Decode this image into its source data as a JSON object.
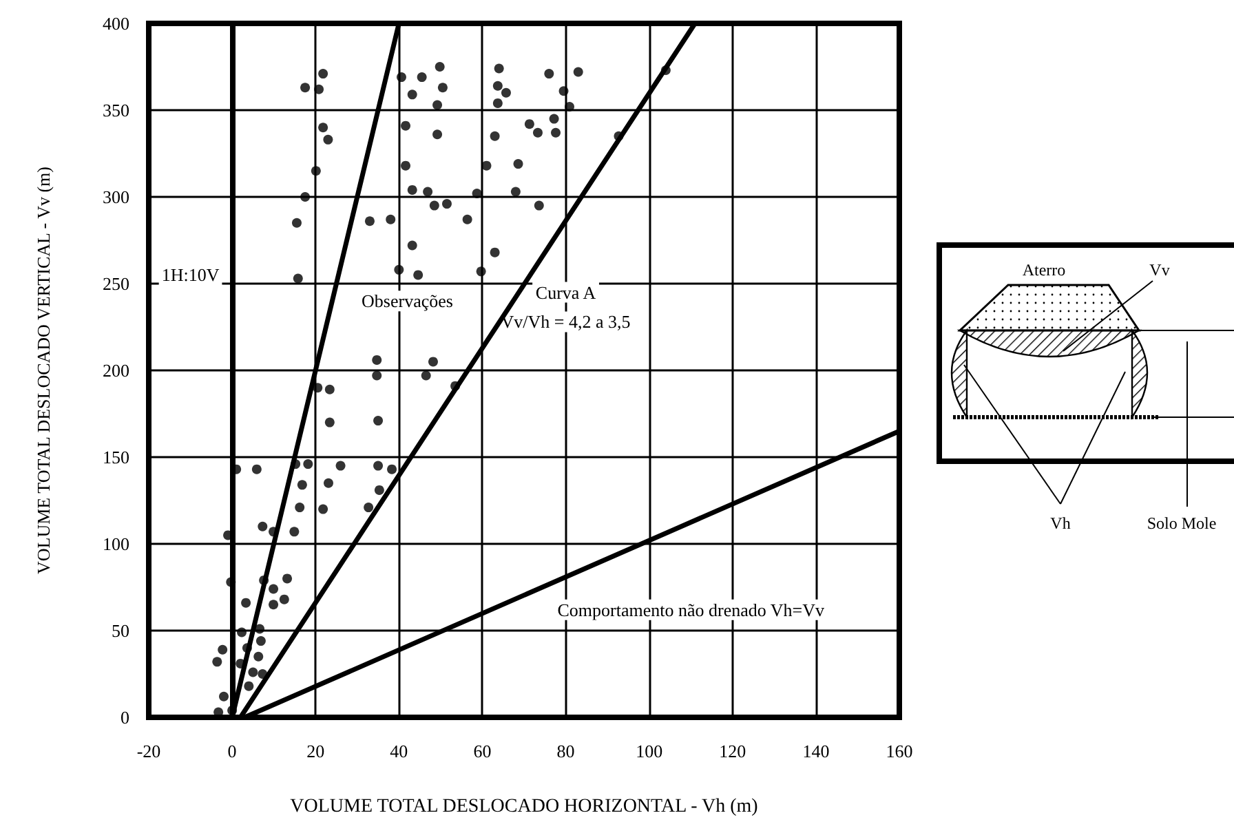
{
  "chart_data": {
    "type": "scatter",
    "xlabel": "VOLUME TOTAL DESLOCADO HORIZONTAL - Vh (m)",
    "ylabel": "VOLUME TOTAL DESLOCADO VERTICAL - Vv (m)",
    "xlim": [
      -20,
      160
    ],
    "xticks": [
      -20,
      0,
      20,
      40,
      60,
      80,
      100,
      120,
      140,
      160
    ],
    "ylim": [
      0,
      400
    ],
    "yticks": [
      0,
      50,
      100,
      150,
      200,
      250,
      300,
      350,
      400
    ],
    "grid": true,
    "series": [
      {
        "color": "#000000",
        "marker": "circle",
        "x": [
          21.8,
          17.5,
          20.8,
          40.6,
          45.5,
          49.8,
          50.5,
          43.2,
          49.2,
          64,
          63.7,
          65.7,
          63.7,
          76,
          21.8,
          23,
          41.6,
          49.2,
          63,
          71.3,
          73.3,
          83,
          79.5,
          80.9,
          77.2,
          77.6,
          104,
          92.7,
          73.6,
          20.1,
          17.5,
          15.5,
          15.8,
          41.6,
          43.2,
          46.9,
          48.5,
          51.5,
          58.7,
          56.4,
          61,
          68.6,
          68,
          63,
          59.7,
          33,
          38,
          43.2,
          40,
          44.6,
          34.7,
          48.2,
          34.7,
          46.5,
          53.5,
          20.5,
          23.4,
          23.4,
          35,
          1,
          5.9,
          15.2,
          18.2,
          26,
          35,
          38.3,
          16.8,
          23.1,
          35.3,
          16.2,
          21.8,
          32.7,
          -1,
          7.3,
          9.9,
          14.9,
          -0.3,
          7.6,
          9.9,
          13.2,
          12.5,
          9.9,
          3.3,
          2.3,
          6.6,
          6.9,
          -2.3,
          -3.6,
          3.6,
          6.3,
          2,
          5,
          7.3,
          4,
          -2,
          -3.3,
          0
        ],
        "values": [
          371,
          363,
          362,
          369,
          369,
          375,
          363,
          359,
          353,
          374,
          364,
          360,
          354,
          371,
          340,
          333,
          341,
          336,
          335,
          342,
          337,
          372,
          361,
          352,
          345,
          337,
          373,
          335,
          295,
          315,
          300,
          285,
          253,
          318,
          304,
          303,
          295,
          296,
          302,
          287,
          318,
          319,
          303,
          268,
          257,
          286,
          287,
          272,
          258,
          255,
          206,
          205,
          197,
          197,
          191,
          190,
          189,
          170,
          171,
          143,
          143,
          146,
          146,
          145,
          145,
          143,
          134,
          135,
          131,
          121,
          120,
          121,
          105,
          110,
          107,
          107,
          78,
          79,
          74,
          80,
          68,
          65,
          66,
          49,
          51,
          44,
          39,
          32,
          40,
          35,
          31,
          26,
          25,
          18,
          12,
          3,
          4
        ]
      },
      {
        "type": "line",
        "color": "#000000",
        "marker": "none",
        "x": [
          0,
          40
        ],
        "values": [
          0,
          400
        ]
      },
      {
        "type": "line",
        "color": "#000000",
        "marker": "none",
        "x": [
          2,
          111
        ],
        "values": [
          0,
          400
        ]
      },
      {
        "type": "line",
        "color": "#000000",
        "marker": "none",
        "x": [
          3,
          160
        ],
        "values": [
          0,
          165
        ]
      }
    ],
    "annotations": [
      "1H:10V",
      "Observações",
      "Curva A",
      "Vv/Vh = 4,2 a 3,5",
      "Comportamento não drenado Vh=Vv",
      "Aterro",
      "Vv",
      "Vh",
      "Solo Mole"
    ]
  }
}
